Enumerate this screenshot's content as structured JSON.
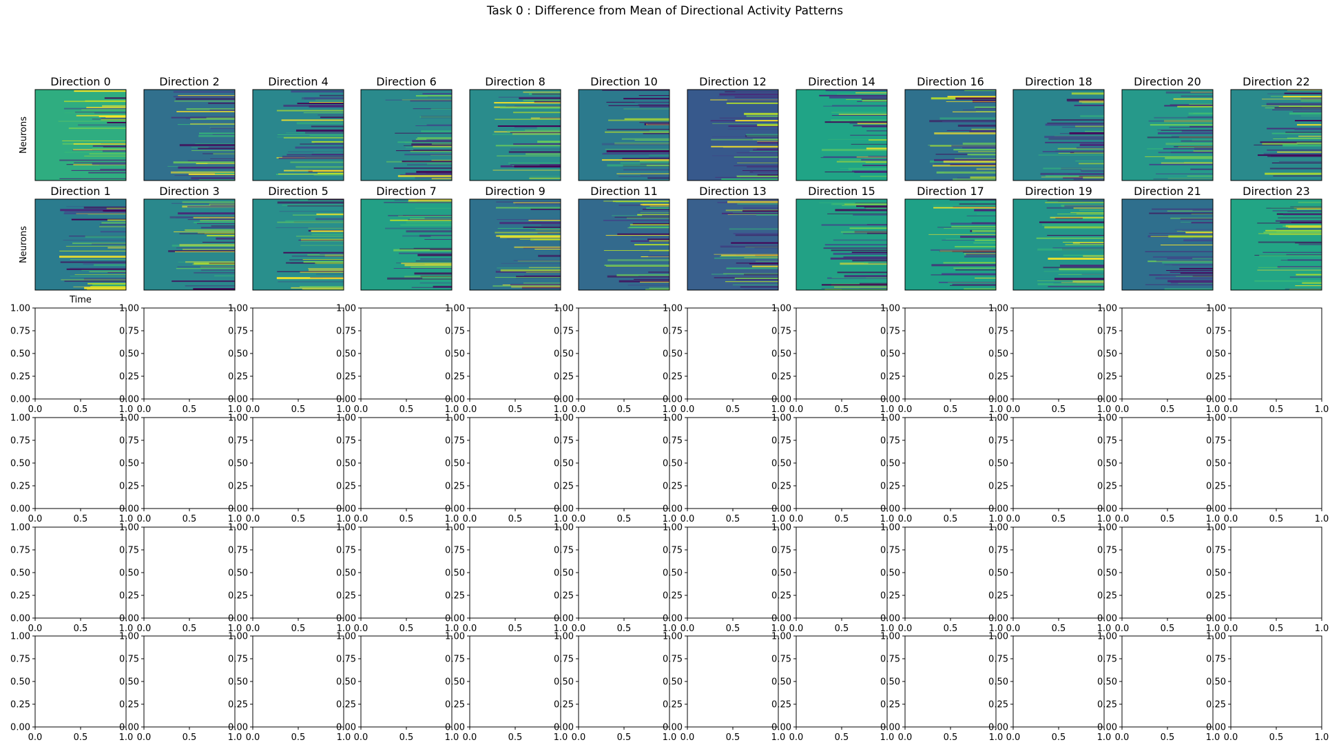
{
  "figure": {
    "title": "Task 0 : Difference from Mean of Directional Activity Patterns"
  },
  "chart_data": {
    "type": "heatmap",
    "title": "Task 0 : Difference from Mean of Directional Activity Patterns",
    "colormap": "viridis",
    "heatmap_rows": [
      [
        "Direction 0",
        "Direction 2",
        "Direction 4",
        "Direction 6",
        "Direction 8",
        "Direction 10",
        "Direction 12",
        "Direction 14",
        "Direction 16",
        "Direction 18",
        "Direction 20",
        "Direction 22"
      ],
      [
        "Direction 1",
        "Direction 3",
        "Direction 5",
        "Direction 7",
        "Direction 9",
        "Direction 11",
        "Direction 13",
        "Direction 15",
        "Direction 17",
        "Direction 19",
        "Direction 21",
        "Direction 23"
      ]
    ],
    "heatmap_base_colors": [
      [
        "#2fad80",
        "#31708d",
        "#2a878d",
        "#2a8a8c",
        "#2a8c8c",
        "#2c7a8d",
        "#37598c",
        "#20a486",
        "#2f718d",
        "#2a858d",
        "#26998a",
        "#2a8a8c"
      ],
      [
        "#2b7c8e",
        "#2a888c",
        "#298f8c",
        "#23a086",
        "#2f718d",
        "#336a8d",
        "#39608d",
        "#22a185",
        "#1fa187",
        "#23968a",
        "#2f6f8d",
        "#22a585"
      ]
    ],
    "ylabel": "Neurons",
    "xlabel": "Time",
    "empty_panels": {
      "rows": 4,
      "cols": 12,
      "xlim": [
        0,
        1
      ],
      "ylim": [
        0,
        1
      ],
      "x_ticks": [
        "0.0",
        "0.5",
        "1.0"
      ],
      "y_ticks": [
        "0.00",
        "0.25",
        "0.50",
        "0.75",
        "1.00"
      ]
    }
  }
}
